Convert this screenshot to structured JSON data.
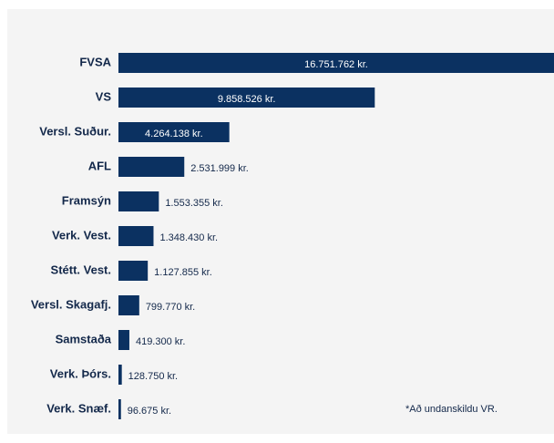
{
  "chart_data": {
    "type": "barh",
    "categories": [
      "FVSA",
      "VS",
      "Versl. Suður.",
      "AFL",
      "Framsýn",
      "Verk. Vest.",
      "Stétt. Vest.",
      "Versl. Skagafj.",
      "Samstaða",
      "Verk. Þórs.",
      "Verk. Snæf."
    ],
    "values": [
      16751762,
      9858526,
      4264138,
      2531999,
      1553355,
      1348430,
      1127855,
      799770,
      419300,
      128750,
      96675
    ],
    "value_labels": [
      "16.751.762 kr.",
      "9.858.526 kr.",
      "4.264.138 kr.",
      "2.531.999 kr.",
      "1.553.355 kr.",
      "1.348.430 kr.",
      "1.127.855 kr.",
      "799.770 kr.",
      "419.300 kr.",
      "128.750 kr.",
      "96.675 kr."
    ],
    "color": "#0b3161",
    "annotation": "*Að undanskildu VR."
  }
}
